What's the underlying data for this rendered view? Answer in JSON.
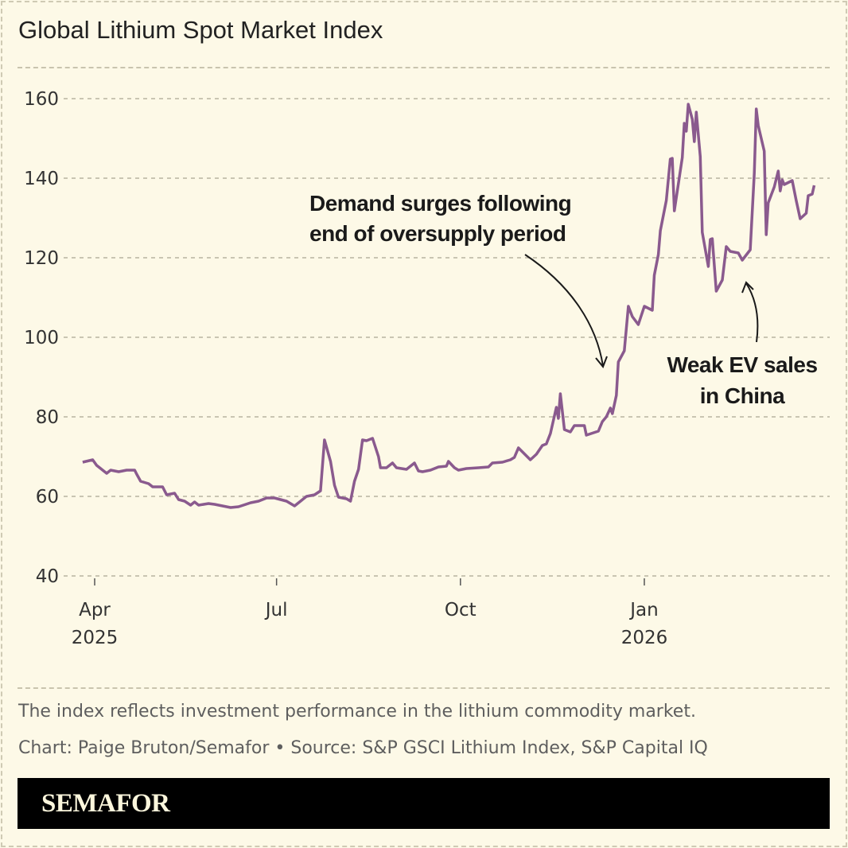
{
  "title": "Global Lithium Spot Market Index",
  "footnote": "The index reflects investment performance in the lithium commodity market.",
  "credit": "Chart: Paige Bruton/Semafor • Source: S&P GSCI Lithium Index, S&P Capital IQ",
  "logo": "SEMAFOR",
  "colors": {
    "line": "#8a5a8e",
    "background": "#fdf9e7",
    "grid": "#b8b4a0",
    "logo_bar": "#000000"
  },
  "chart_data": {
    "type": "line",
    "title": "Global Lithium Spot Market Index",
    "xlabel": "",
    "ylabel": "",
    "ylim": [
      40,
      160
    ],
    "yticks": [
      40,
      60,
      80,
      100,
      120,
      140,
      160
    ],
    "ytick_labels": [
      "40",
      "60",
      "80",
      "100",
      "120",
      "140",
      "160"
    ],
    "xticks": [
      {
        "date": "2025-04-01",
        "label": "Apr",
        "sublabel": "2025"
      },
      {
        "date": "2025-07-01",
        "label": "Jul",
        "sublabel": ""
      },
      {
        "date": "2025-10-01",
        "label": "Oct",
        "sublabel": ""
      },
      {
        "date": "2026-01-01",
        "label": "Jan",
        "sublabel": "2026"
      }
    ],
    "grid": "horizontal dashed",
    "annotations": [
      {
        "lines": [
          "Demand surges following",
          "end of oversupply period"
        ],
        "points_to": "2025-12-19"
      },
      {
        "lines": [
          "Weak EV sales",
          "in China"
        ],
        "points_to": "2026-02-19"
      }
    ],
    "series": [
      {
        "points": [
          [
            "2025-03-26",
            68.6
          ],
          [
            "2025-03-31",
            69.2
          ],
          [
            "2025-04-02",
            67.8
          ],
          [
            "2025-04-07",
            65.8
          ],
          [
            "2025-04-09",
            66.6
          ],
          [
            "2025-04-13",
            66.2
          ],
          [
            "2025-04-17",
            66.6
          ],
          [
            "2025-04-21",
            66.6
          ],
          [
            "2025-04-22",
            65.6
          ],
          [
            "2025-04-24",
            63.8
          ],
          [
            "2025-04-28",
            63.2
          ],
          [
            "2025-04-30",
            62.4
          ],
          [
            "2025-05-05",
            62.4
          ],
          [
            "2025-05-07",
            60.4
          ],
          [
            "2025-05-11",
            60.8
          ],
          [
            "2025-05-13",
            59.2
          ],
          [
            "2025-05-16",
            58.8
          ],
          [
            "2025-05-19",
            57.8
          ],
          [
            "2025-05-21",
            58.6
          ],
          [
            "2025-05-23",
            57.8
          ],
          [
            "2025-05-28",
            58.2
          ],
          [
            "2025-05-31",
            58.0
          ],
          [
            "2025-06-04",
            57.6
          ],
          [
            "2025-06-08",
            57.2
          ],
          [
            "2025-06-12",
            57.4
          ],
          [
            "2025-06-18",
            58.4
          ],
          [
            "2025-06-22",
            58.8
          ],
          [
            "2025-06-26",
            59.6
          ],
          [
            "2025-06-30",
            59.6
          ],
          [
            "2025-07-06",
            58.8
          ],
          [
            "2025-07-10",
            57.6
          ],
          [
            "2025-07-12",
            58.4
          ],
          [
            "2025-07-16",
            60.0
          ],
          [
            "2025-07-20",
            60.4
          ],
          [
            "2025-07-23",
            61.4
          ],
          [
            "2025-07-25",
            74.2
          ],
          [
            "2025-07-28",
            68.8
          ],
          [
            "2025-07-30",
            62.8
          ],
          [
            "2025-08-01",
            59.8
          ],
          [
            "2025-08-05",
            59.4
          ],
          [
            "2025-08-07",
            58.8
          ],
          [
            "2025-08-09",
            63.8
          ],
          [
            "2025-08-11",
            66.8
          ],
          [
            "2025-08-13",
            74.2
          ],
          [
            "2025-08-15",
            74.0
          ],
          [
            "2025-08-18",
            74.6
          ],
          [
            "2025-08-21",
            70.0
          ],
          [
            "2025-08-22",
            67.2
          ],
          [
            "2025-08-25",
            67.2
          ],
          [
            "2025-08-28",
            68.4
          ],
          [
            "2025-08-30",
            67.2
          ],
          [
            "2025-09-04",
            66.8
          ],
          [
            "2025-09-08",
            68.4
          ],
          [
            "2025-09-10",
            66.4
          ],
          [
            "2025-09-12",
            66.2
          ],
          [
            "2025-09-16",
            66.6
          ],
          [
            "2025-09-20",
            67.4
          ],
          [
            "2025-09-24",
            67.6
          ],
          [
            "2025-09-25",
            68.8
          ],
          [
            "2025-09-28",
            67.2
          ],
          [
            "2025-09-30",
            66.6
          ],
          [
            "2025-10-04",
            67.0
          ],
          [
            "2025-10-10",
            67.2
          ],
          [
            "2025-10-15",
            67.4
          ],
          [
            "2025-10-17",
            68.4
          ],
          [
            "2025-10-22",
            68.6
          ],
          [
            "2025-10-26",
            69.2
          ],
          [
            "2025-10-28",
            69.8
          ],
          [
            "2025-10-30",
            72.2
          ],
          [
            "2025-11-05",
            69.2
          ],
          [
            "2025-11-08",
            70.6
          ],
          [
            "2025-11-11",
            72.8
          ],
          [
            "2025-11-13",
            73.2
          ],
          [
            "2025-11-15",
            75.8
          ],
          [
            "2025-11-18",
            82.4
          ],
          [
            "2025-11-19",
            79.6
          ],
          [
            "2025-11-20",
            85.8
          ],
          [
            "2025-11-22",
            76.8
          ],
          [
            "2025-11-25",
            76.2
          ],
          [
            "2025-11-27",
            77.8
          ],
          [
            "2025-12-02",
            77.8
          ],
          [
            "2025-12-03",
            75.4
          ],
          [
            "2025-12-09",
            76.4
          ],
          [
            "2025-12-11",
            78.8
          ],
          [
            "2025-12-13",
            80.0
          ],
          [
            "2025-12-15",
            82.2
          ],
          [
            "2025-12-16",
            80.8
          ],
          [
            "2025-12-18",
            85.4
          ],
          [
            "2025-12-19",
            93.8
          ],
          [
            "2025-12-22",
            96.6
          ],
          [
            "2025-12-24",
            107.8
          ],
          [
            "2025-12-26",
            105.2
          ],
          [
            "2025-12-29",
            103.2
          ],
          [
            "2026-01-01",
            107.8
          ],
          [
            "2026-01-05",
            106.8
          ],
          [
            "2026-01-06",
            115.6
          ],
          [
            "2026-01-08",
            120.8
          ],
          [
            "2026-01-09",
            126.8
          ],
          [
            "2026-01-12",
            134.4
          ],
          [
            "2026-01-14",
            144.8
          ],
          [
            "2026-01-15",
            145.0
          ],
          [
            "2026-01-16",
            131.8
          ],
          [
            "2026-01-20",
            145.2
          ],
          [
            "2026-01-21",
            153.8
          ],
          [
            "2026-01-22",
            151.8
          ],
          [
            "2026-01-23",
            158.6
          ],
          [
            "2026-01-25",
            154.8
          ],
          [
            "2026-01-26",
            149.2
          ],
          [
            "2026-01-27",
            156.6
          ],
          [
            "2026-01-29",
            145.4
          ],
          [
            "2026-01-30",
            126.4
          ],
          [
            "2026-02-02",
            117.8
          ],
          [
            "2026-02-03",
            124.6
          ],
          [
            "2026-02-04",
            124.8
          ],
          [
            "2026-02-06",
            111.6
          ],
          [
            "2026-02-09",
            114.4
          ],
          [
            "2026-02-11",
            122.8
          ],
          [
            "2026-02-13",
            121.6
          ],
          [
            "2026-02-17",
            121.2
          ],
          [
            "2026-02-19",
            119.4
          ],
          [
            "2026-02-23",
            122.0
          ],
          [
            "2026-02-25",
            141.2
          ],
          [
            "2026-02-26",
            157.4
          ],
          [
            "2026-02-27",
            153.2
          ],
          [
            "2026-03-02",
            146.8
          ],
          [
            "2026-03-03",
            125.8
          ],
          [
            "2026-03-04",
            133.8
          ],
          [
            "2026-03-07",
            137.8
          ],
          [
            "2026-03-09",
            141.8
          ],
          [
            "2026-03-10",
            136.8
          ],
          [
            "2026-03-11",
            139.6
          ],
          [
            "2026-03-12",
            138.4
          ],
          [
            "2026-03-16",
            139.4
          ],
          [
            "2026-03-18",
            134.4
          ],
          [
            "2026-03-20",
            129.8
          ],
          [
            "2026-03-23",
            131.2
          ],
          [
            "2026-03-24",
            135.6
          ],
          [
            "2026-03-26",
            136.0
          ],
          [
            "2026-03-27",
            138.2
          ]
        ]
      }
    ]
  }
}
